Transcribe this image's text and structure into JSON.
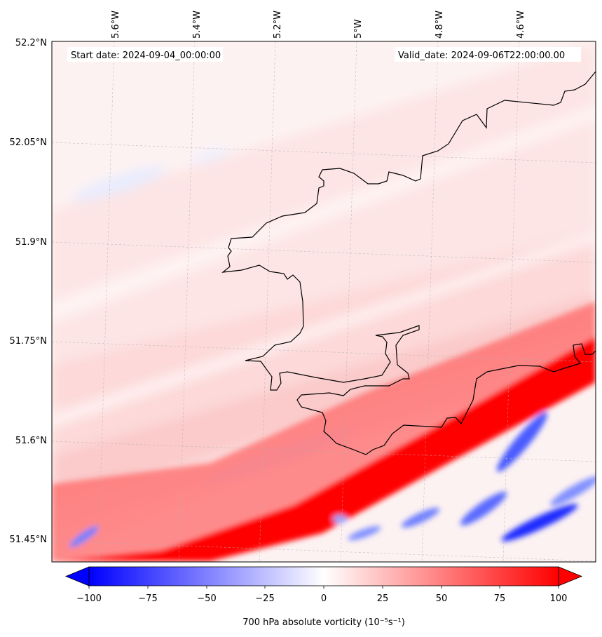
{
  "header": {
    "start_date": "Start date: 2024-09-04_00:00:00",
    "valid_date": "Valid_date: 2024-09-06T22:00:00.00"
  },
  "map": {
    "lon_labels": [
      "5.6°W",
      "5.4°W",
      "5.2°W",
      "5°W",
      "4.8°W",
      "4.6°W"
    ],
    "lat_labels": [
      "52.2°N",
      "52.05°N",
      "51.9°N",
      "51.75°N",
      "51.6°N",
      "51.45°N"
    ],
    "field": "700 hPa absolute vorticity",
    "colors": {
      "strong_positive": "#ff0000",
      "weak_positive": "#ffe0e0",
      "strong_negative": "#0000ff",
      "neutral": "#ffffff",
      "coastline": "#000000"
    }
  },
  "colorbar": {
    "ticks": [
      "−100",
      "−75",
      "−50",
      "−25",
      "0",
      "25",
      "50",
      "75",
      "100"
    ],
    "label": "700 hPa absolute vorticity (10⁻⁵s⁻¹)",
    "vmin": -100,
    "vmax": 100,
    "extend": "both"
  }
}
